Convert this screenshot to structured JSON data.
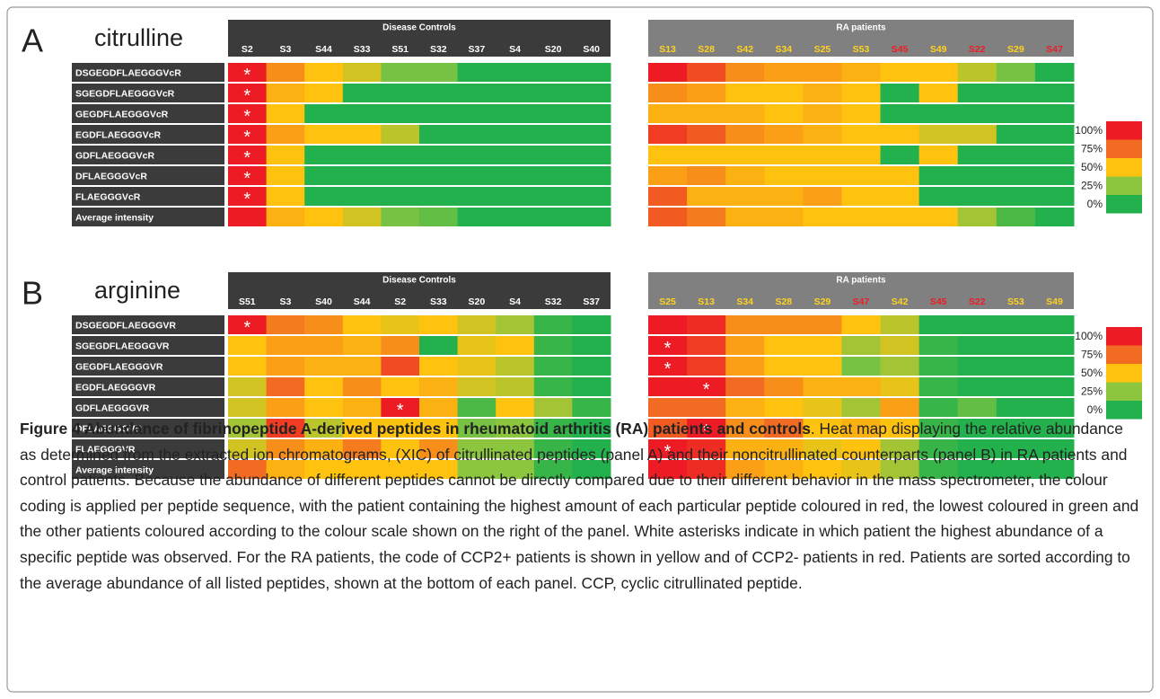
{
  "figure": {
    "asterisk": "*",
    "colorbar": [
      {
        "value": 100,
        "label": "100%",
        "color": "#ed1c24"
      },
      {
        "value": 75,
        "label": "75%",
        "color": "#f26b22"
      },
      {
        "value": 50,
        "label": "50%",
        "color": "#ffc20e"
      },
      {
        "value": 25,
        "label": "25%",
        "color": "#8cc63f"
      },
      {
        "value": 0,
        "label": "0%",
        "color": "#22b14c"
      }
    ],
    "panels": [
      {
        "letter": "A",
        "name": "citrulline",
        "rows": [
          "DSGEGDFLAEGGGVcR",
          "SGEGDFLAEGGGVcR",
          "GEGDFLAEGGGVcR",
          "EGDFLAEGGGVcR",
          "GDFLAEGGGVcR",
          "DFLAEGGGVcR",
          "FLAEGGGVcR",
          "Average intensity"
        ],
        "groups": [
          {
            "title": "Disease Controls",
            "header_color": "#3b3b3b",
            "columns": [
              "S2",
              "S3",
              "S44",
              "S33",
              "S51",
              "S32",
              "S37",
              "S4",
              "S20",
              "S40"
            ],
            "column_colors": [
              "#ffffff",
              "#ffffff",
              "#ffffff",
              "#ffffff",
              "#ffffff",
              "#ffffff",
              "#ffffff",
              "#ffffff",
              "#ffffff",
              "#ffffff"
            ],
            "values": [
              [
                100,
                65,
                50,
                40,
                20,
                20,
                0,
                0,
                0,
                0
              ],
              [
                100,
                55,
                50,
                0,
                0,
                0,
                0,
                0,
                0,
                0
              ],
              [
                100,
                50,
                0,
                0,
                0,
                0,
                0,
                0,
                0,
                0
              ],
              [
                100,
                60,
                50,
                50,
                35,
                0,
                0,
                0,
                0,
                0
              ],
              [
                100,
                50,
                0,
                0,
                0,
                0,
                0,
                0,
                0,
                0
              ],
              [
                100,
                50,
                0,
                0,
                0,
                0,
                0,
                0,
                0,
                0
              ],
              [
                100,
                50,
                0,
                0,
                0,
                0,
                0,
                0,
                0,
                0
              ],
              [
                100,
                55,
                50,
                40,
                20,
                15,
                0,
                0,
                0,
                0
              ]
            ],
            "top": [
              "S2",
              "S2",
              "S2",
              "S2",
              "S2",
              "S2",
              "S2",
              null
            ]
          },
          {
            "title": "RA patients",
            "header_color": "#808080",
            "columns": [
              "S13",
              "S28",
              "S42",
              "S34",
              "S25",
              "S53",
              "S45",
              "S49",
              "S22",
              "S29",
              "S47"
            ],
            "column_colors": [
              "#ffd21f",
              "#ffd21f",
              "#ffd21f",
              "#ffd21f",
              "#ffd21f",
              "#ffd21f",
              "#ee1c24",
              "#ffd21f",
              "#ee1c24",
              "#ffd21f",
              "#ee1c24"
            ],
            "values": [
              [
                100,
                85,
                65,
                60,
                60,
                55,
                50,
                50,
                35,
                20,
                0
              ],
              [
                65,
                60,
                50,
                50,
                55,
                50,
                0,
                50,
                0,
                0,
                0
              ],
              [
                55,
                55,
                55,
                50,
                55,
                50,
                0,
                0,
                0,
                0,
                0
              ],
              [
                90,
                80,
                65,
                60,
                55,
                50,
                50,
                40,
                40,
                0,
                0
              ],
              [
                50,
                50,
                50,
                50,
                50,
                50,
                0,
                50,
                0,
                0,
                0
              ],
              [
                60,
                65,
                55,
                50,
                50,
                50,
                50,
                0,
                0,
                0,
                0
              ],
              [
                80,
                55,
                55,
                55,
                60,
                50,
                50,
                0,
                0,
                0,
                0
              ],
              [
                80,
                70,
                55,
                55,
                50,
                50,
                50,
                50,
                30,
                10,
                0
              ]
            ],
            "top": [
              null,
              null,
              null,
              null,
              null,
              null,
              null,
              null
            ]
          }
        ]
      },
      {
        "letter": "B",
        "name": "arginine",
        "rows": [
          "DSGEGDFLAEGGGVR",
          "SGEGDFLAEGGGVR",
          "GEGDFLAEGGGVR",
          "EGDFLAEGGGVR",
          "GDFLAEGGGVR",
          "DFLAEGGGVR",
          "FLAEGGGVR",
          "Average intensity"
        ],
        "groups": [
          {
            "title": "Disease Controls",
            "header_color": "#3b3b3b",
            "columns": [
              "S51",
              "S3",
              "S40",
              "S44",
              "S2",
              "S33",
              "S20",
              "S4",
              "S32",
              "S37"
            ],
            "column_colors": [
              "#ffffff",
              "#ffffff",
              "#ffffff",
              "#ffffff",
              "#ffffff",
              "#ffffff",
              "#ffffff",
              "#ffffff",
              "#ffffff",
              "#ffffff"
            ],
            "values": [
              [
                100,
                70,
                65,
                50,
                45,
                50,
                40,
                30,
                5,
                0
              ],
              [
                50,
                60,
                60,
                55,
                65,
                0,
                45,
                50,
                5,
                0
              ],
              [
                50,
                60,
                55,
                55,
                85,
                50,
                45,
                35,
                5,
                0
              ],
              [
                40,
                75,
                50,
                65,
                50,
                55,
                40,
                35,
                5,
                0
              ],
              [
                40,
                60,
                50,
                55,
                100,
                55,
                10,
                50,
                30,
                5
              ],
              [
                30,
                90,
                35,
                50,
                50,
                50,
                20,
                25,
                5,
                0
              ],
              [
                40,
                65,
                55,
                70,
                50,
                65,
                25,
                25,
                5,
                0
              ],
              [
                75,
                55,
                50,
                50,
                50,
                50,
                25,
                25,
                5,
                0
              ]
            ],
            "top": [
              "S51",
              null,
              null,
              null,
              "S2",
              null,
              null,
              null
            ]
          },
          {
            "title": "RA patients",
            "header_color": "#808080",
            "columns": [
              "S25",
              "S13",
              "S34",
              "S28",
              "S29",
              "S47",
              "S42",
              "S45",
              "S22",
              "S53",
              "S49"
            ],
            "column_colors": [
              "#ffd21f",
              "#ffd21f",
              "#ffd21f",
              "#ffd21f",
              "#ffd21f",
              "#ee1c24",
              "#ffd21f",
              "#ee1c24",
              "#ee1c24",
              "#ffd21f",
              "#ffd21f"
            ],
            "values": [
              [
                100,
                95,
                65,
                65,
                65,
                50,
                35,
                0,
                0,
                0,
                0
              ],
              [
                100,
                90,
                60,
                50,
                50,
                30,
                40,
                5,
                0,
                0,
                0
              ],
              [
                100,
                90,
                60,
                50,
                50,
                20,
                30,
                5,
                0,
                0,
                0
              ],
              [
                100,
                100,
                75,
                65,
                55,
                55,
                45,
                5,
                0,
                0,
                0
              ],
              [
                75,
                75,
                55,
                50,
                45,
                30,
                60,
                5,
                15,
                0,
                0
              ],
              [
                80,
                100,
                65,
                75,
                50,
                55,
                50,
                5,
                0,
                0,
                0
              ],
              [
                100,
                95,
                55,
                55,
                45,
                50,
                30,
                5,
                0,
                0,
                0
              ],
              [
                100,
                95,
                60,
                55,
                50,
                45,
                30,
                5,
                0,
                0,
                0
              ]
            ],
            "top": [
              null,
              "S25",
              "S25",
              "S13",
              null,
              "S13",
              "S25",
              null
            ]
          }
        ]
      }
    ],
    "caption": {
      "title": "Figure 4 Abundance of fibrinopeptide A-derived peptides in rheumatoid arthritis (RA) patients and controls",
      "body": ". Heat map displaying the relative abundance as determined from the extracted ion chromatograms, (XIC) of citrullinated peptides (panel A) and their noncitrullinated counterparts (panel B) in RA patients and control patients. Because the abundance of different peptides cannot be directly compared due to their different behavior in the mass spectrometer, the colour coding is applied per peptide sequence, with the patient containing the highest amount of each particular peptide coloured in red, the lowest coloured in green and the other patients coloured according to the colour scale shown on the right of the panel. White asterisks indicate in which patient the highest abundance of a specific peptide was observed. For the RA patients, the code of CCP2+ patients is shown in yellow and of CCP2- patients in red. Patients are sorted according to the average abundance of all listed peptides, shown at the bottom of each panel. CCP, cyclic citrullinated peptide."
    }
  }
}
